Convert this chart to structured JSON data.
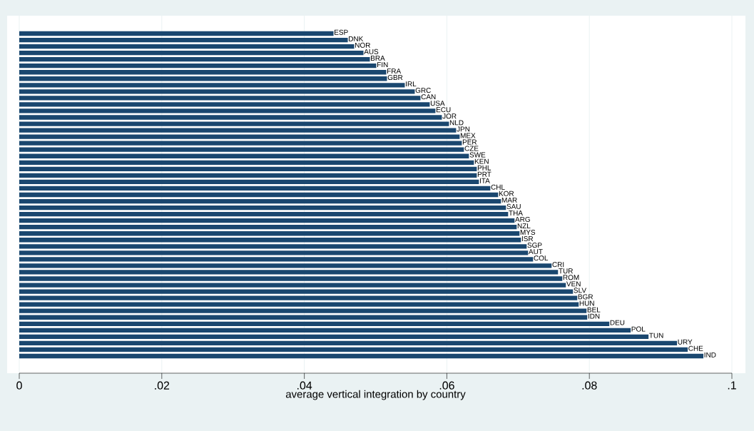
{
  "chart_data": {
    "type": "bar",
    "orientation": "horizontal",
    "xlabel": "average vertical integration by country",
    "categories": [
      "ESP",
      "DNK",
      "NOR",
      "AUS",
      "BRA",
      "FIN",
      "FRA",
      "GBR",
      "IRL",
      "GRC",
      "CAN",
      "USA",
      "ECU",
      "JOR",
      "NLD",
      "JPN",
      "MEX",
      "PER",
      "CZE",
      "SWE",
      "KEN",
      "PHL",
      "PRT",
      "ITA",
      "CHL",
      "KOR",
      "MAR",
      "SAU",
      "THA",
      "ARG",
      "NZL",
      "MYS",
      "ISR",
      "SGP",
      "AUT",
      "COL",
      "CRI",
      "TUR",
      "ROM",
      "VEN",
      "SLV",
      "BGR",
      "HUN",
      "BEL",
      "IDN",
      "DEU",
      "POL",
      "TUN",
      "URY",
      "CHE",
      "IND"
    ],
    "values": [
      0.0441,
      0.0461,
      0.047,
      0.0483,
      0.0492,
      0.0501,
      0.0515,
      0.0516,
      0.0541,
      0.0555,
      0.0563,
      0.0576,
      0.0584,
      0.0593,
      0.0603,
      0.0613,
      0.0618,
      0.0621,
      0.0624,
      0.0631,
      0.0638,
      0.0642,
      0.0642,
      0.0645,
      0.0661,
      0.0672,
      0.0676,
      0.0683,
      0.0686,
      0.0695,
      0.0698,
      0.0702,
      0.0704,
      0.0712,
      0.0714,
      0.0721,
      0.0747,
      0.0756,
      0.0762,
      0.0767,
      0.0777,
      0.0783,
      0.0785,
      0.0796,
      0.0797,
      0.0828,
      0.0858,
      0.0883,
      0.0923,
      0.0938,
      0.096
    ],
    "color": "#1a476f",
    "xlim": [
      0,
      0.1
    ],
    "xticks": [
      0,
      {
        "value": 0.02,
        "label": ".02"
      },
      {
        "value": 0.04,
        "label": ".04"
      },
      {
        "value": 0.06,
        "label": ".06"
      },
      {
        "value": 0.08,
        "label": ".08"
      },
      {
        "value": 0.1,
        "label": ".1"
      }
    ],
    "grid": "x"
  }
}
